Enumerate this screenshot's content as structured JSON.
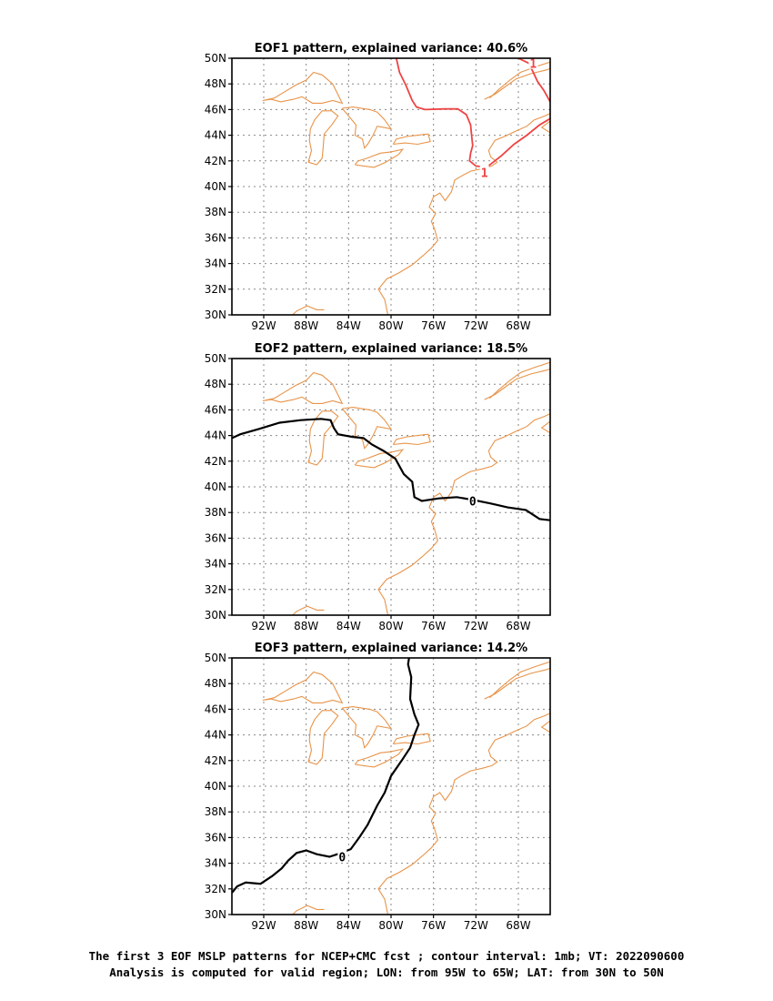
{
  "panels": [
    {
      "title": "EOF1 pattern, explained variance: 40.6%",
      "variance_percent": 40.6,
      "contour_color": "#ee4444",
      "contours": [
        {
          "value": "1",
          "points": [
            [
              -79.5,
              50
            ],
            [
              -79.2,
              48.9
            ],
            [
              -78.6,
              47.9
            ],
            [
              -78.0,
              46.7
            ],
            [
              -77.6,
              46.2
            ],
            [
              -76.8,
              46.0
            ],
            [
              -75,
              46.05
            ],
            [
              -73.7,
              46.05
            ],
            [
              -72.9,
              45.6
            ],
            [
              -72.5,
              44.8
            ],
            [
              -72.4,
              43.9
            ],
            [
              -72.3,
              43.2
            ],
            [
              -72.5,
              42.6
            ],
            [
              -72.6,
              42.0
            ],
            [
              -72.0,
              41.6
            ],
            [
              -71.0,
              41.5
            ],
            [
              -69.6,
              42.4
            ],
            [
              -68.4,
              43.3
            ],
            [
              -67.2,
              44.0
            ],
            [
              -66.0,
              44.8
            ],
            [
              -65,
              45.3
            ]
          ],
          "label_at": [
            -71.2,
            41.1
          ]
        },
        {
          "value": "1",
          "points": [
            [
              -68.0,
              50
            ],
            [
              -67.0,
              49.6
            ],
            [
              -66.2,
              48.2
            ],
            [
              -65.6,
              47.5
            ],
            [
              -65,
              46.6
            ]
          ],
          "label_at": [
            -66.6,
            49.6
          ]
        }
      ]
    },
    {
      "title": "EOF2 pattern, explained variance: 18.5%",
      "variance_percent": 18.5,
      "contour_color": "#000000",
      "contours": [
        {
          "value": "0",
          "points": [
            [
              -95,
              43.8
            ],
            [
              -94.2,
              44.1
            ],
            [
              -92.5,
              44.5
            ],
            [
              -90.5,
              45.0
            ],
            [
              -88.5,
              45.2
            ],
            [
              -86.6,
              45.3
            ],
            [
              -85.7,
              45.2
            ],
            [
              -85.4,
              44.6
            ],
            [
              -85.0,
              44.1
            ],
            [
              -83.7,
              43.9
            ],
            [
              -82.6,
              43.8
            ],
            [
              -81.8,
              43.3
            ],
            [
              -80.7,
              42.8
            ],
            [
              -79.6,
              42.2
            ],
            [
              -78.8,
              41.0
            ],
            [
              -78.0,
              40.4
            ],
            [
              -77.8,
              39.2
            ],
            [
              -77.1,
              38.9
            ],
            [
              -75.5,
              39.1
            ],
            [
              -73.8,
              39.2
            ],
            [
              -72.4,
              39.0
            ],
            [
              -70.6,
              38.7
            ],
            [
              -69.0,
              38.4
            ],
            [
              -67.3,
              38.2
            ],
            [
              -66.0,
              37.5
            ],
            [
              -65,
              37.4
            ]
          ],
          "label_at": [
            -72.3,
            38.9
          ]
        }
      ]
    },
    {
      "title": "EOF3 pattern, explained variance: 14.2%",
      "variance_percent": 14.2,
      "contour_color": "#000000",
      "contours": [
        {
          "value": "0",
          "points": [
            [
              -95,
              31.7
            ],
            [
              -94.5,
              32.2
            ],
            [
              -93.7,
              32.5
            ],
            [
              -92.3,
              32.4
            ],
            [
              -91.2,
              33.0
            ],
            [
              -90.3,
              33.6
            ],
            [
              -89.7,
              34.2
            ],
            [
              -88.9,
              34.8
            ],
            [
              -88.0,
              35.0
            ],
            [
              -87.0,
              34.7
            ],
            [
              -85.8,
              34.5
            ],
            [
              -84.7,
              34.8
            ],
            [
              -83.8,
              35.1
            ],
            [
              -83.0,
              36.0
            ],
            [
              -82.2,
              37.0
            ],
            [
              -81.3,
              38.5
            ],
            [
              -80.6,
              39.5
            ],
            [
              -80.0,
              40.8
            ],
            [
              -79.0,
              42.0
            ],
            [
              -78.2,
              43.0
            ],
            [
              -77.8,
              44.0
            ],
            [
              -77.4,
              44.8
            ],
            [
              -77.8,
              45.6
            ],
            [
              -78.2,
              46.8
            ],
            [
              -78.1,
              48.5
            ],
            [
              -78.4,
              49.5
            ],
            [
              -78.3,
              50
            ]
          ],
          "label_at": [
            -84.6,
            34.5
          ]
        }
      ]
    }
  ],
  "map": {
    "lon_range": [
      -95,
      -65
    ],
    "lat_range": [
      30,
      50
    ],
    "lon_ticks": [
      -92,
      -88,
      -84,
      -80,
      -76,
      -72,
      -68
    ],
    "lon_tick_labels": [
      "92W",
      "88W",
      "84W",
      "80W",
      "76W",
      "72W",
      "68W"
    ],
    "lat_ticks": [
      30,
      32,
      34,
      36,
      38,
      40,
      42,
      44,
      46,
      48,
      50
    ],
    "lat_tick_labels": [
      "30N",
      "32N",
      "34N",
      "36N",
      "38N",
      "40N",
      "42N",
      "44N",
      "46N",
      "48N",
      "50N"
    ],
    "grid": true,
    "coastline_color": "#e8944a"
  },
  "caption": {
    "line1": "The first 3 EOF MSLP patterns for NCEP+CMC fcst ; contour interval: 1mb; VT: 2022090600",
    "line2": "Analysis is computed for valid region; LON: from 95W to 65W; LAT: from 30N to 50N"
  }
}
